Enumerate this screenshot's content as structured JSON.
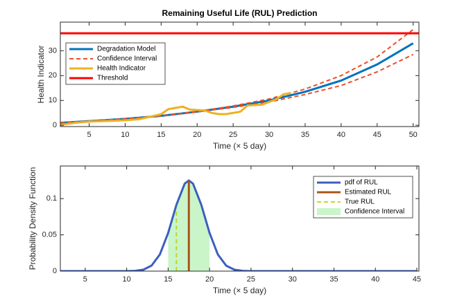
{
  "chart_data": [
    {
      "type": "line",
      "title": "Remaining Useful Life (RUL) Prediction",
      "xlabel": "Time (× 5 day)",
      "ylabel": "Health Indicator",
      "xlim": [
        1,
        50.8
      ],
      "ylim": [
        -0.5,
        41.5
      ],
      "xticks": [
        5,
        10,
        15,
        20,
        25,
        30,
        35,
        40,
        45,
        50
      ],
      "yticks": [
        0,
        10,
        20,
        30
      ],
      "legend": "upper left",
      "series": [
        {
          "name": "Degradation Model",
          "color": "#0072bd",
          "style": "solid",
          "x": [
            1,
            5,
            10,
            15,
            20,
            25,
            30,
            35,
            40,
            45,
            50
          ],
          "values": [
            1,
            1.7,
            2.6,
            3.8,
            5.5,
            7.5,
            10,
            13.5,
            18,
            24.5,
            33
          ]
        },
        {
          "name": "Confidence Interval",
          "color": "#e8502a",
          "style": "dashed",
          "x": [
            1,
            5,
            10,
            15,
            20,
            25,
            30,
            35,
            40,
            45,
            50
          ],
          "values": [
            1,
            1.7,
            2.6,
            3.8,
            5.6,
            7.8,
            10.6,
            14.6,
            20,
            27.5,
            38.5
          ]
        },
        {
          "name": null,
          "color": "#e8502a",
          "style": "dashed",
          "x": [
            1,
            5,
            10,
            15,
            20,
            25,
            30,
            35,
            40,
            45,
            50
          ],
          "values": [
            1,
            1.7,
            2.6,
            3.8,
            5.4,
            7.2,
            9.4,
            12.4,
            16,
            21.5,
            28.5
          ]
        },
        {
          "name": "Health Indicator",
          "color": "#edb120",
          "style": "solid",
          "x": [
            1,
            3,
            5,
            8,
            10,
            12,
            14,
            15,
            16,
            18,
            19,
            21,
            22,
            23,
            24,
            26,
            27,
            29,
            31,
            32,
            33
          ],
          "values": [
            0.2,
            1,
            1.5,
            1.8,
            2,
            2.5,
            3.8,
            4.5,
            6.5,
            7.5,
            6.3,
            6,
            5,
            4.5,
            4.5,
            5.5,
            8,
            8.3,
            10.5,
            12.5,
            13
          ]
        },
        {
          "name": "Threshold",
          "color": "#ff0000",
          "style": "solid",
          "x": [
            1,
            50.8
          ],
          "values": [
            37,
            37
          ]
        }
      ]
    },
    {
      "type": "line",
      "xlabel": "Time (× 5 day)",
      "ylabel": "Probability Density Function",
      "xlim": [
        2,
        45.25
      ],
      "ylim": [
        0,
        0.145
      ],
      "xticks": [
        5,
        10,
        15,
        20,
        25,
        30,
        35,
        40,
        45
      ],
      "yticks": [
        0,
        0.05,
        0.1
      ],
      "legend": "upper right",
      "series": [
        {
          "name": "pdf of RUL",
          "color": "#3a5fbf",
          "style": "solid",
          "x": [
            2,
            4,
            6,
            8,
            10,
            11,
            12,
            13,
            14,
            15,
            16,
            17,
            17.5,
            18,
            19,
            20,
            21,
            22,
            23,
            24,
            25,
            27,
            30,
            35,
            40,
            45
          ],
          "values": [
            0,
            0,
            0,
            0,
            0,
            0.0004,
            0.0019,
            0.0076,
            0.0229,
            0.0526,
            0.0915,
            0.1207,
            0.125,
            0.1207,
            0.0915,
            0.0526,
            0.0229,
            0.0076,
            0.0019,
            0.0004,
            0,
            0,
            0,
            0,
            0,
            0
          ]
        },
        {
          "name": "Estimated RUL",
          "color": "#a9541c",
          "style": "solid",
          "x": [
            17.5,
            17.5
          ],
          "values": [
            0,
            0.125
          ]
        },
        {
          "name": "True RUL",
          "color": "#c2d42e",
          "style": "dashed",
          "x": [
            16,
            16
          ],
          "values": [
            0,
            0.0857
          ]
        },
        {
          "name": "Confidence Interval",
          "color": "#c9f5c9",
          "style": "fill",
          "x": [
            15,
            16,
            17,
            17.5,
            18,
            19,
            20
          ],
          "values": [
            0.0526,
            0.0915,
            0.1207,
            0.125,
            0.1207,
            0.0915,
            0.0526
          ]
        }
      ]
    }
  ]
}
